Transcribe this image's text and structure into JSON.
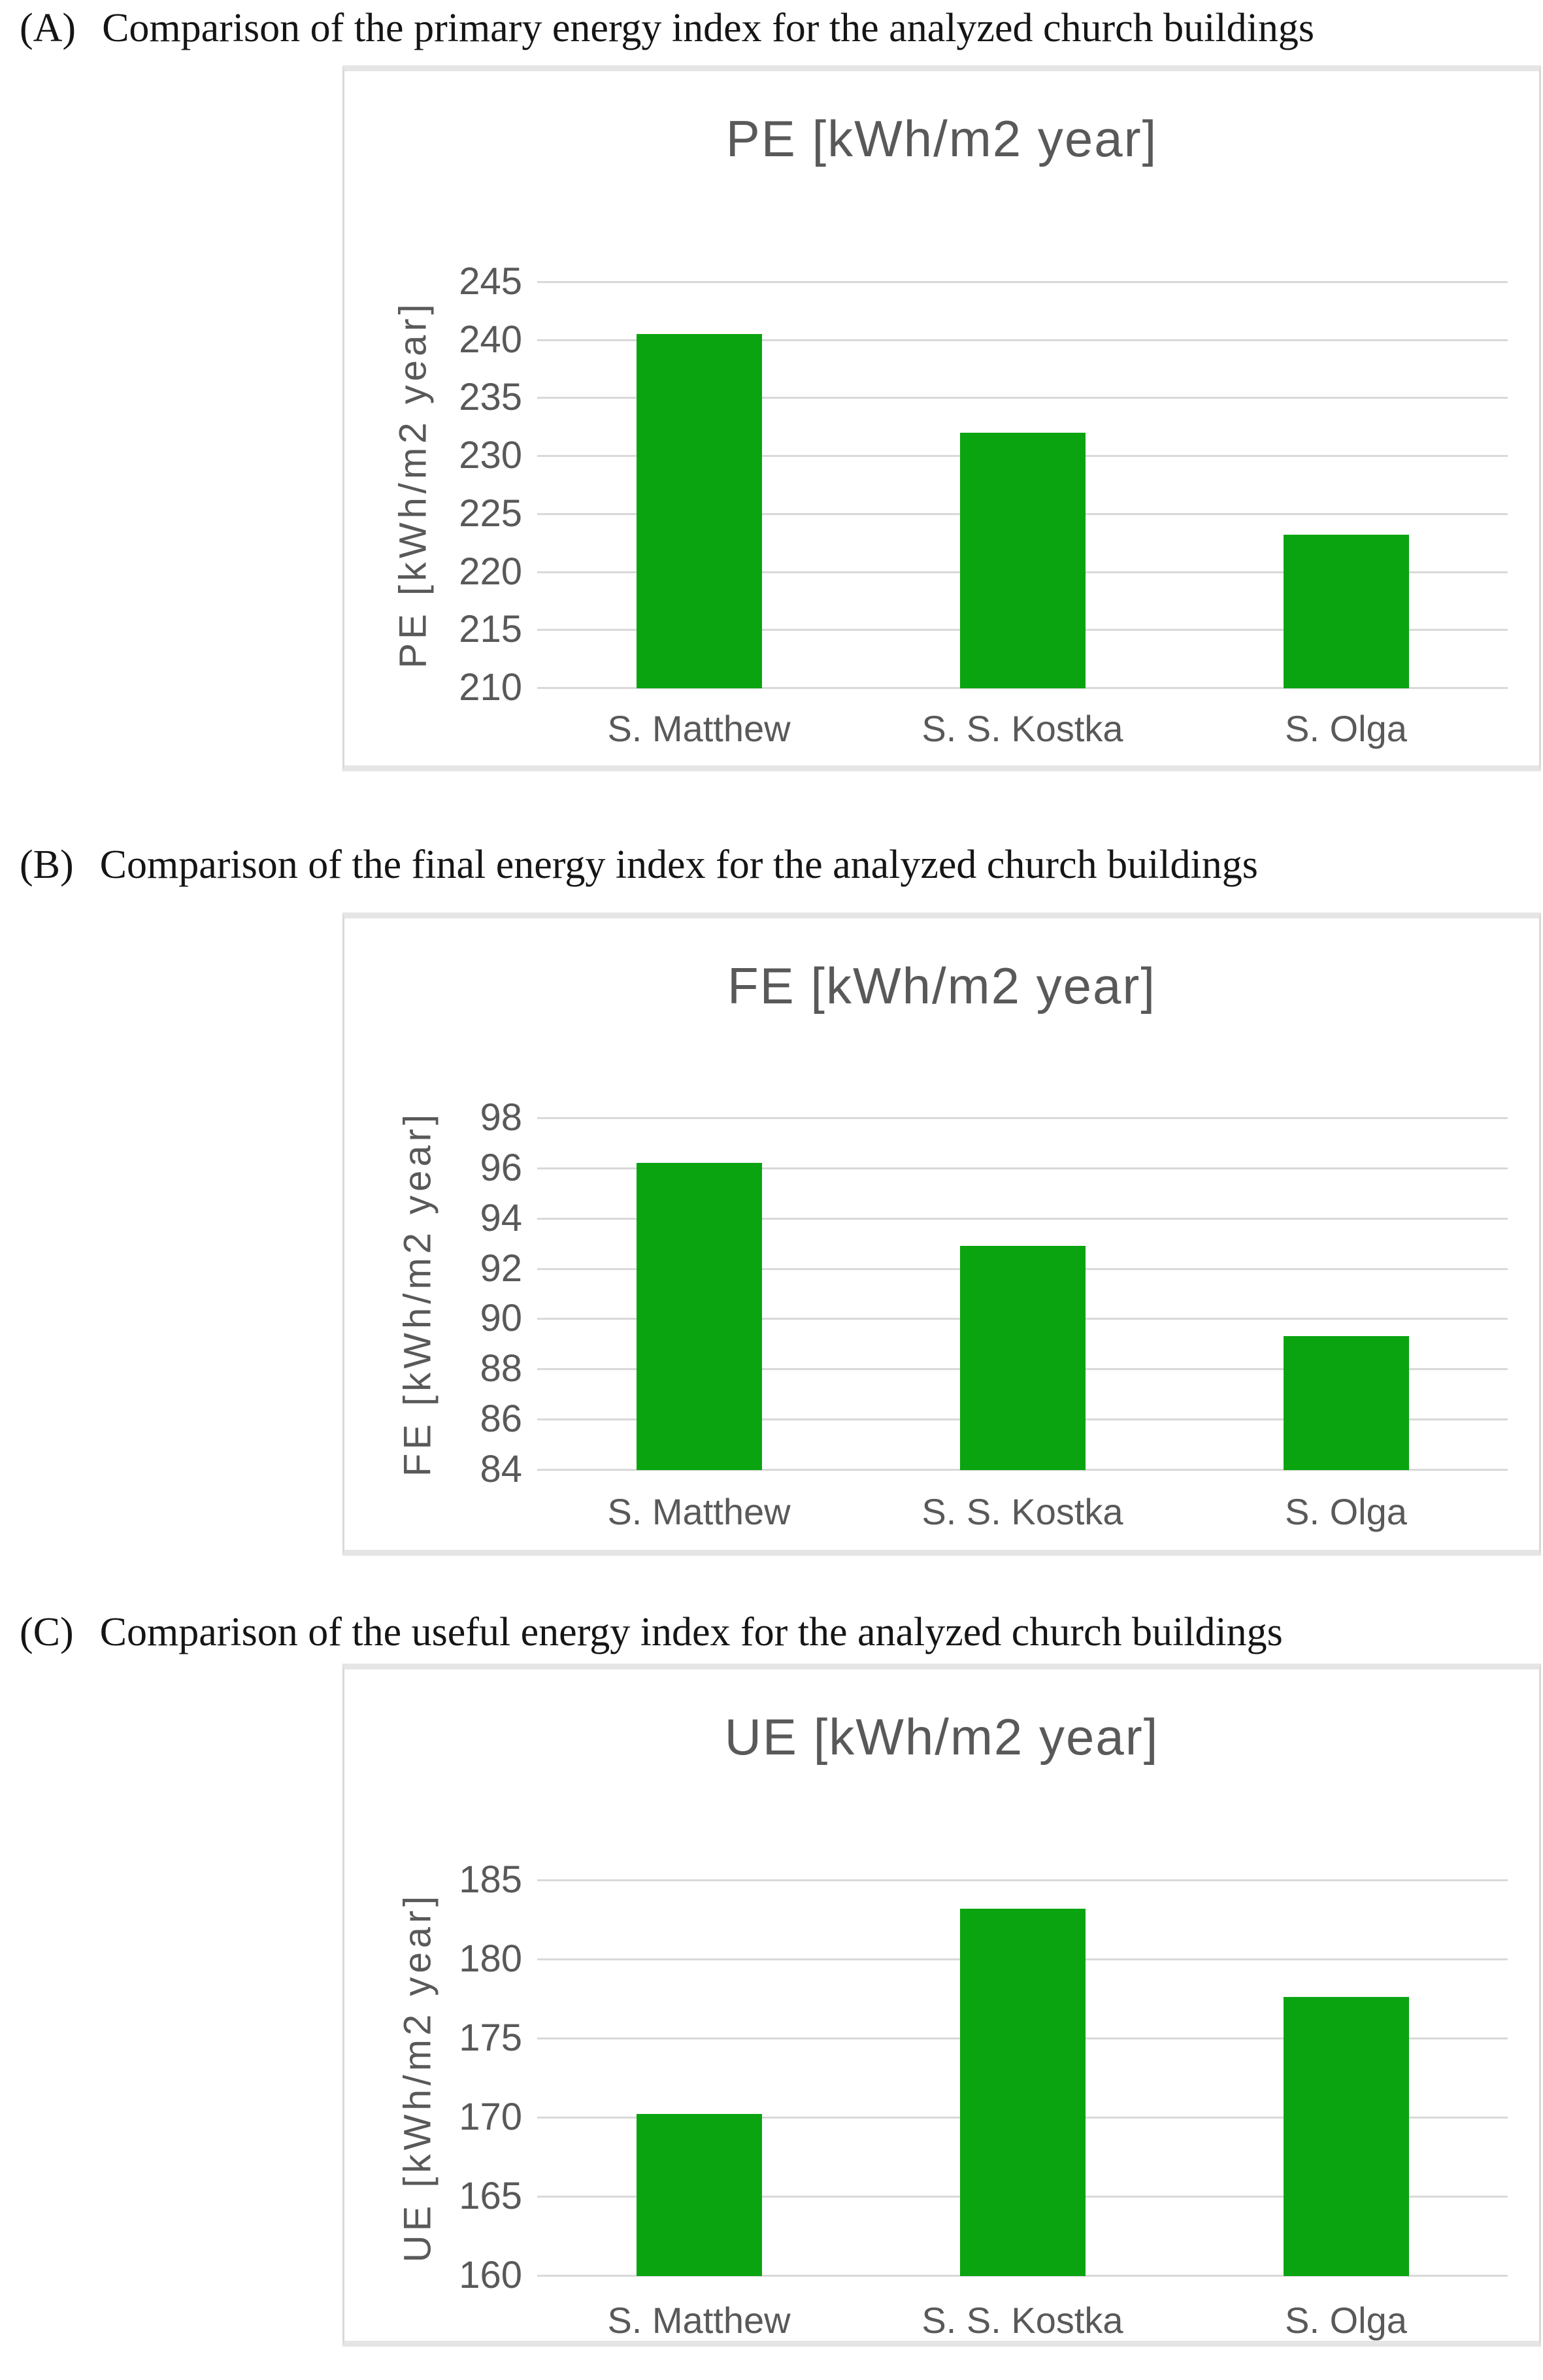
{
  "page": {
    "background": "#ffffff",
    "caption_text_color": "#151515",
    "chart_text_color": "#595959",
    "gridline_color": "#d9d9d9"
  },
  "charts": [
    {
      "label": "(A)",
      "caption": "Comparison of the primary energy index for the analyzed church buildings",
      "chart_data": {
        "type": "bar",
        "title": "PE [kWh/m2 year]",
        "xlabel": "",
        "ylabel": "PE [kWh/m2 year]",
        "categories": [
          "S. Matthew",
          "S. S. Kostka",
          "S. Olga"
        ],
        "values": [
          240.5,
          232.0,
          223.2
        ],
        "ylim": [
          210,
          245
        ],
        "major_unit": 5,
        "grid": true,
        "legend": "none",
        "bar_color": "#0ba411",
        "text_color": "#595959"
      }
    },
    {
      "label": "(B)",
      "caption": "Comparison of the final energy index for the analyzed church buildings",
      "chart_data": {
        "type": "bar",
        "title": "FE [kWh/m2 year]",
        "xlabel": "",
        "ylabel": "FE [kWh/m2 year]",
        "categories": [
          "S. Matthew",
          "S. S. Kostka",
          "S. Olga"
        ],
        "values": [
          96.2,
          92.9,
          89.3
        ],
        "ylim": [
          84,
          98
        ],
        "major_unit": 2,
        "grid": true,
        "legend": "none",
        "bar_color": "#0ba411",
        "text_color": "#595959"
      }
    },
    {
      "label": "(C)",
      "caption": "Comparison of the useful energy index for the analyzed church buildings",
      "chart_data": {
        "type": "bar",
        "title": "UE [kWh/m2 year]",
        "xlabel": "",
        "ylabel": "UE [kWh/m2 year]",
        "categories": [
          "S. Matthew",
          "S. S. Kostka",
          "S. Olga"
        ],
        "values": [
          170.2,
          183.2,
          177.6
        ],
        "ylim": [
          160,
          185
        ],
        "major_unit": 5,
        "grid": true,
        "legend": "none",
        "bar_color": "#0ba411",
        "text_color": "#595959"
      }
    }
  ]
}
